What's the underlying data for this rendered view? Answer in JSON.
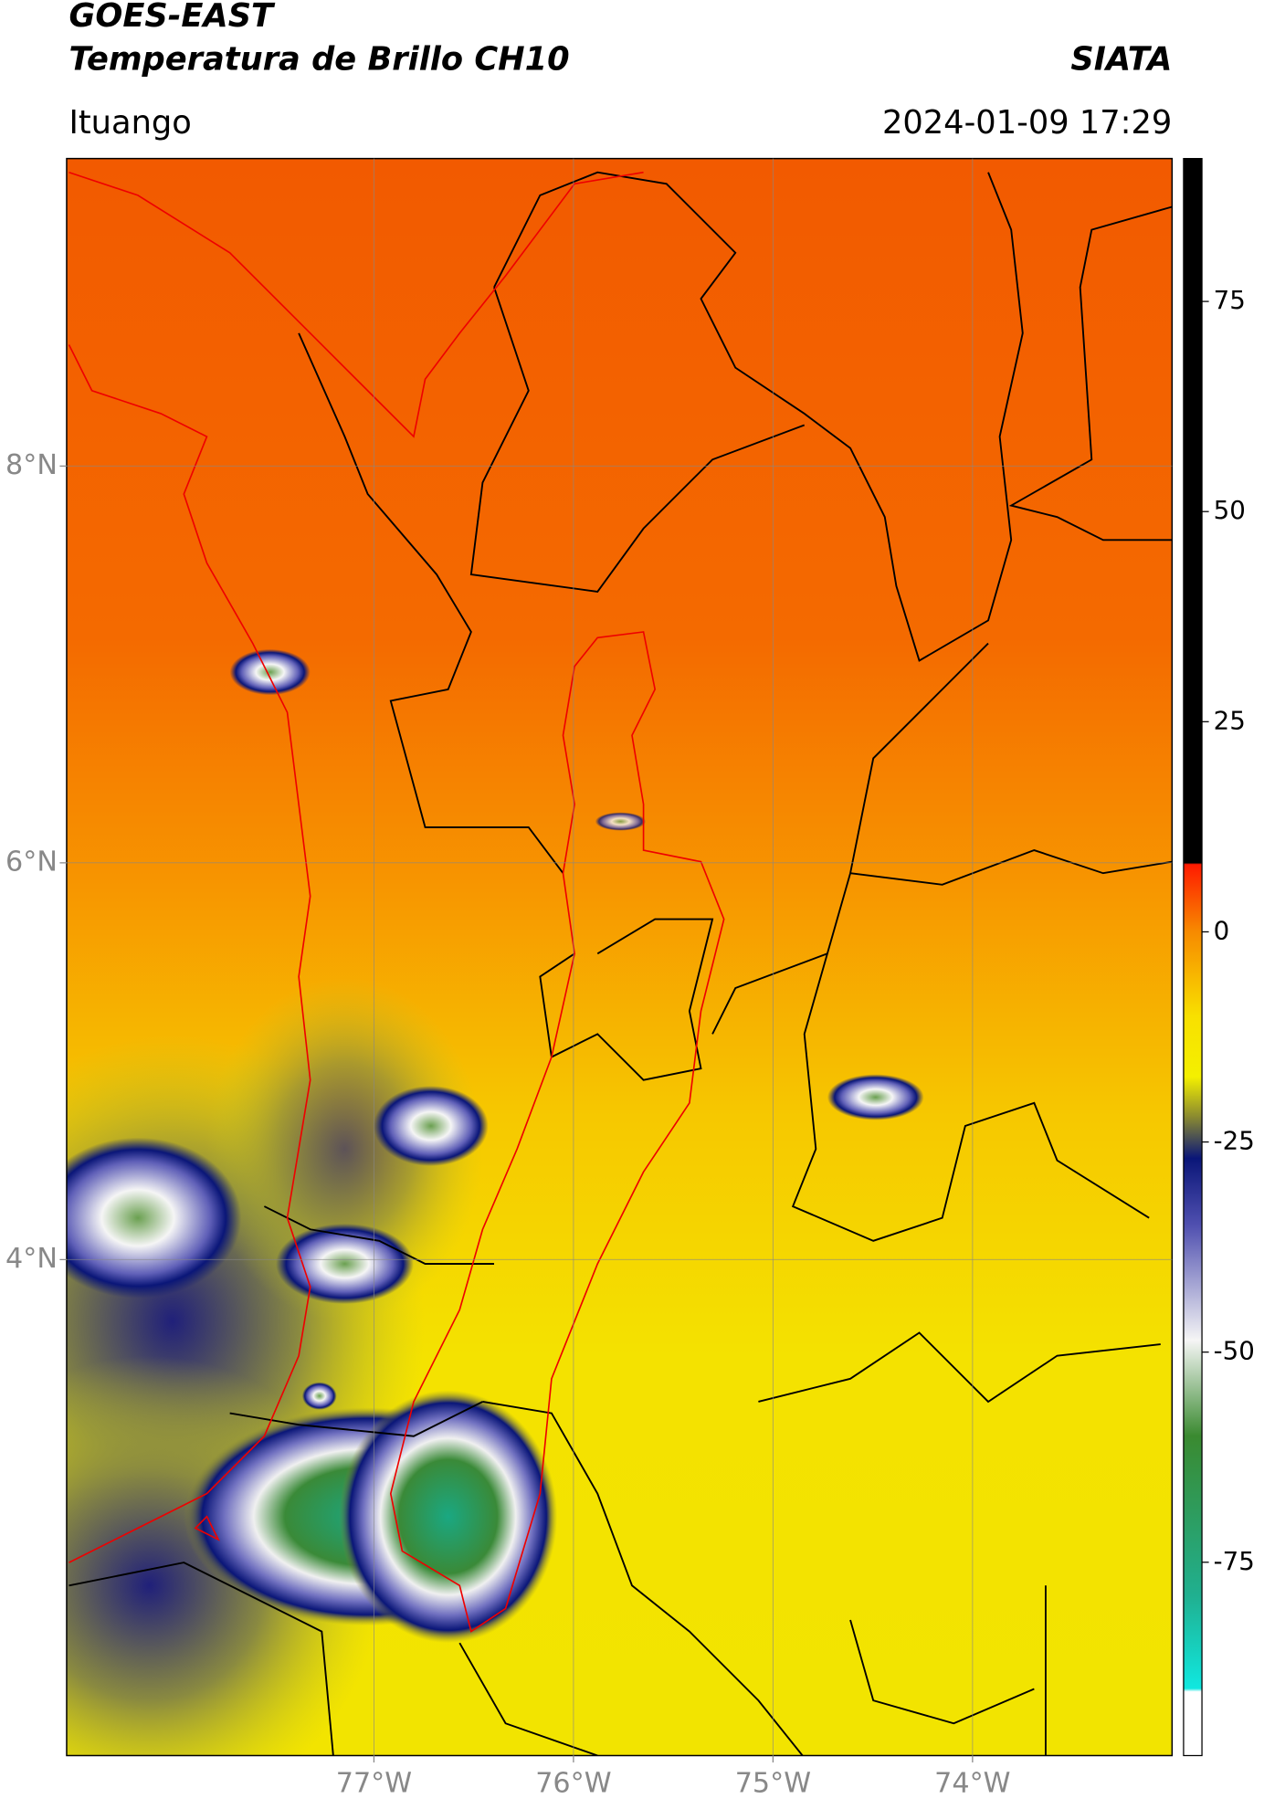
{
  "header": {
    "title": "GOES-EAST",
    "subtitle": "Temperatura de Brillo CH10",
    "agency": "SIATA",
    "location": "Ituango",
    "datetime": "2024-01-09 17:29"
  },
  "map": {
    "lonlim": [
      -78.54,
      -73.0
    ],
    "latlim": [
      1.5,
      9.55
    ],
    "lon_ticks": [
      {
        "value": -77,
        "label": "77°W"
      },
      {
        "value": -76,
        "label": "76°W"
      },
      {
        "value": -75,
        "label": "75°W"
      },
      {
        "value": -74,
        "label": "74°W"
      }
    ],
    "lat_ticks": [
      {
        "value": 8,
        "label": "8°N"
      },
      {
        "value": 6,
        "label": "6°N"
      },
      {
        "value": 4,
        "label": "4°N"
      }
    ],
    "grid": true
  },
  "colorbar": {
    "lim": [
      -98,
      92
    ],
    "ticks": [
      75,
      50,
      25,
      0,
      -25,
      -50,
      -75
    ]
  }
}
